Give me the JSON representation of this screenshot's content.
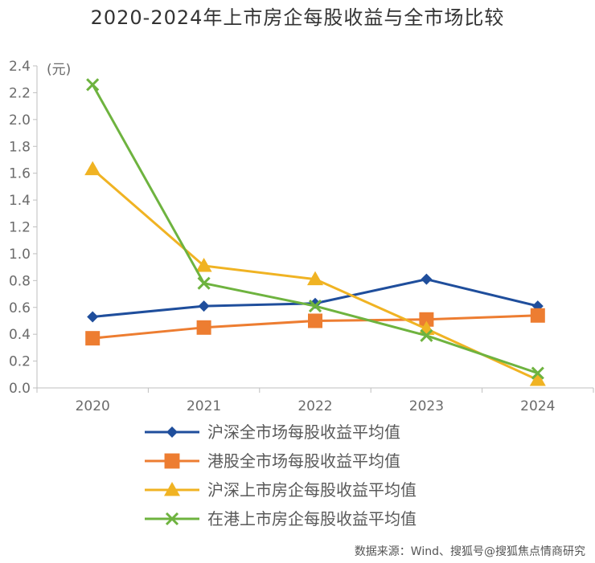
{
  "chart_data": {
    "type": "line",
    "title": "2020-2024年上市房企每股收益与全市场比较",
    "unit_label": "(元)",
    "x": [
      "2020",
      "2021",
      "2022",
      "2023",
      "2024"
    ],
    "ylim": [
      0,
      2.4
    ],
    "yticks": [
      "0.0",
      "0.2",
      "0.4",
      "0.6",
      "0.8",
      "1.0",
      "1.2",
      "1.4",
      "1.6",
      "1.8",
      "2.0",
      "2.2",
      "2.4"
    ],
    "grid": false,
    "legend_position": "bottom",
    "series": [
      {
        "name": "沪深全市场每股收益平均值",
        "color": "#1f4e9c",
        "marker": "diamond",
        "values": [
          0.53,
          0.61,
          0.63,
          0.81,
          0.61
        ]
      },
      {
        "name": "港股全市场每股收益平均值",
        "color": "#ed7d31",
        "marker": "square",
        "values": [
          0.37,
          0.45,
          0.5,
          0.51,
          0.54
        ]
      },
      {
        "name": "沪深上市房企每股收益平均值",
        "color": "#f0b323",
        "marker": "triangle",
        "values": [
          1.63,
          0.91,
          0.81,
          0.44,
          0.06
        ]
      },
      {
        "name": "在港上市房企每股收益平均值",
        "color": "#6eb33f",
        "marker": "x",
        "values": [
          2.26,
          0.78,
          0.61,
          0.39,
          0.11
        ]
      }
    ]
  },
  "source_note": "数据来源：Wind、搜狐号@搜狐焦点情商研究"
}
